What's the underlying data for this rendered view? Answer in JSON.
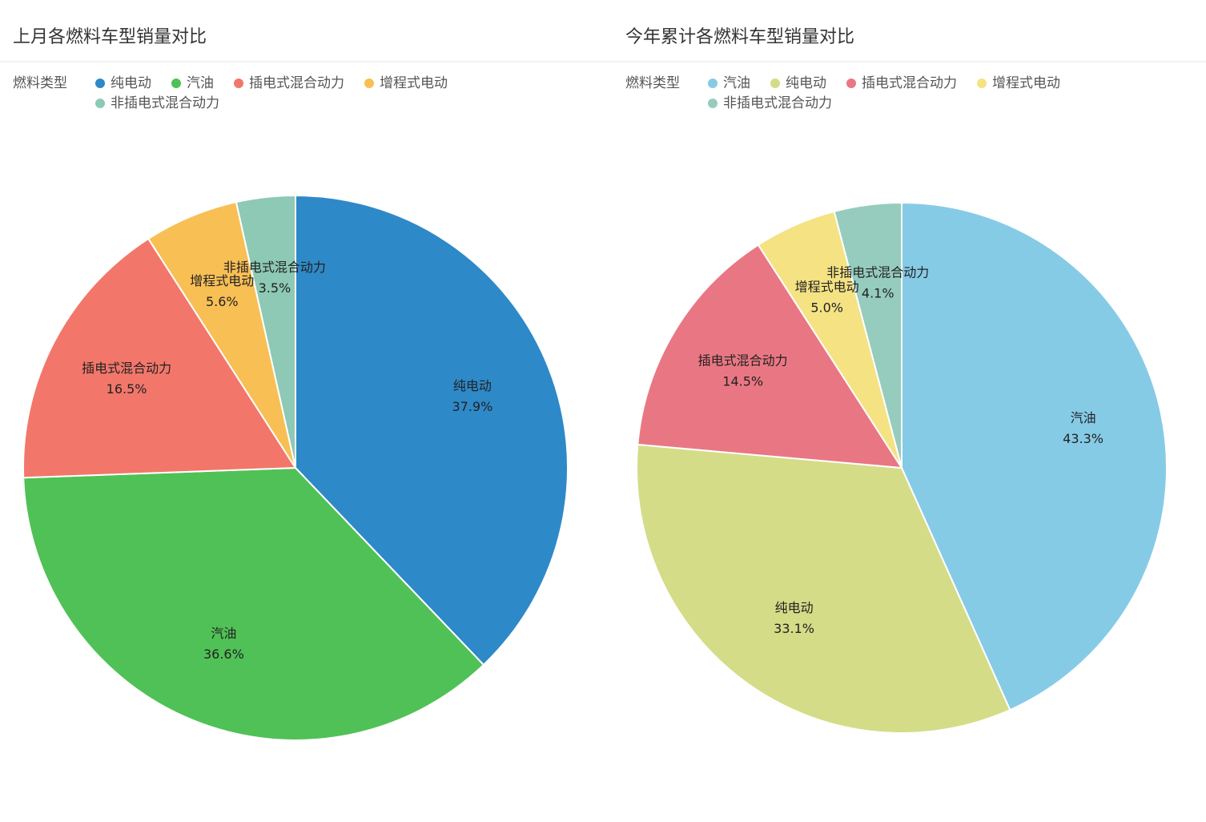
{
  "chart_data": [
    {
      "type": "pie",
      "title": "上月各燃料车型销量对比",
      "legend_title": "燃料类型",
      "categories": [
        "纯电动",
        "汽油",
        "插电式混合动力",
        "增程式电动",
        "非插电式混合动力"
      ],
      "values": [
        37.9,
        36.6,
        16.5,
        5.6,
        3.5
      ],
      "value_labels": [
        "37.9%",
        "36.6%",
        "16.5%",
        "5.6%",
        "3.5%"
      ],
      "colors": [
        "#2e89c8",
        "#50c156",
        "#f2776a",
        "#f8bf55",
        "#8dc9b5"
      ]
    },
    {
      "type": "pie",
      "title": "今年累计各燃料车型销量对比",
      "legend_title": "燃料类型",
      "categories": [
        "汽油",
        "纯电动",
        "插电式混合动力",
        "增程式电动",
        "非插电式混合动力"
      ],
      "values": [
        43.3,
        33.1,
        14.5,
        5.0,
        4.1
      ],
      "value_labels": [
        "43.3%",
        "33.1%",
        "14.5%",
        "5.0%",
        "4.1%"
      ],
      "colors": [
        "#86cbe6",
        "#d4dc87",
        "#e97783",
        "#f4e283",
        "#95ccbd"
      ]
    }
  ]
}
